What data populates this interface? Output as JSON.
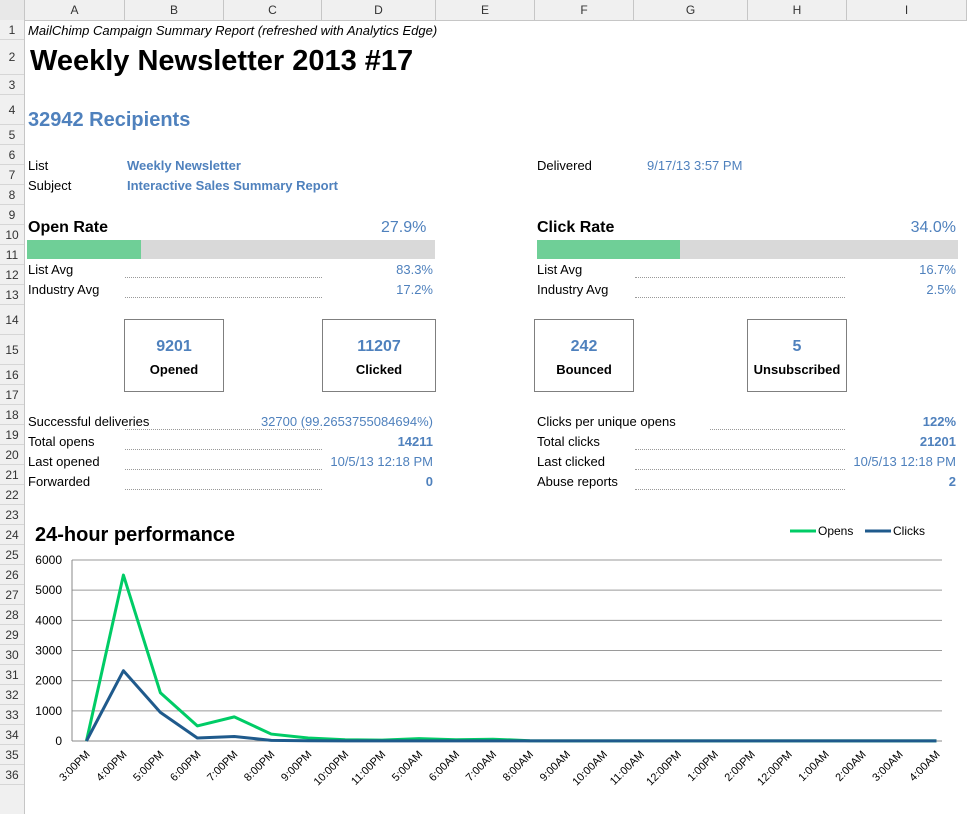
{
  "columns": [
    "A",
    "B",
    "C",
    "D",
    "E",
    "F",
    "G",
    "H",
    "I"
  ],
  "rows": [
    "1",
    "2",
    "3",
    "4",
    "5",
    "6",
    "7",
    "8",
    "9",
    "10",
    "11",
    "12",
    "13",
    "14",
    "15",
    "16",
    "17",
    "18",
    "19",
    "20",
    "21",
    "22",
    "23",
    "24",
    "25",
    "26",
    "27",
    "28",
    "29",
    "30",
    "31",
    "32",
    "33",
    "34",
    "35",
    "36"
  ],
  "report": {
    "subtitle": "MailChimp Campaign Summary Report (refreshed with Analytics Edge)",
    "title": "Weekly Newsletter 2013 #17",
    "recipients": "32942 Recipients",
    "list_label": "List",
    "list_value": "Weekly Newsletter",
    "subject_label": "Subject",
    "subject_value": "Interactive Sales Summary Report",
    "delivered_label": "Delivered",
    "delivered_value": "9/17/13 3:57 PM"
  },
  "open_rate": {
    "label": "Open Rate",
    "value": "27.9%",
    "fraction": 0.279,
    "list_avg_label": "List Avg",
    "list_avg_value": "83.3%",
    "industry_avg_label": "Industry Avg",
    "industry_avg_value": "17.2%"
  },
  "click_rate": {
    "label": "Click Rate",
    "value": "34.0%",
    "fraction": 0.34,
    "list_avg_label": "List Avg",
    "list_avg_value": "16.7%",
    "industry_avg_label": "Industry Avg",
    "industry_avg_value": "2.5%"
  },
  "stat_boxes": [
    {
      "number": "9201",
      "label": "Opened"
    },
    {
      "number": "11207",
      "label": "Clicked"
    },
    {
      "number": "242",
      "label": "Bounced"
    },
    {
      "number": "5",
      "label": "Unsubscribed"
    }
  ],
  "left_stats": [
    {
      "label": "Successful deliveries",
      "value": "32700  (99.2653755084694%)"
    },
    {
      "label": "Total opens",
      "value": "14211"
    },
    {
      "label": "Last opened",
      "value": "10/5/13 12:18 PM"
    },
    {
      "label": "Forwarded",
      "value": "0"
    }
  ],
  "right_stats": [
    {
      "label": "Clicks per unique opens",
      "value": "122%"
    },
    {
      "label": "Total clicks",
      "value": "21201"
    },
    {
      "label": "Last clicked",
      "value": "10/5/13 12:18 PM"
    },
    {
      "label": "Abuse reports",
      "value": "2"
    }
  ],
  "chart_data": {
    "type": "line",
    "title": "24-hour performance",
    "xlabel": "",
    "ylabel": "",
    "ylim": [
      0,
      6000
    ],
    "yticks": [
      "0",
      "1000",
      "2000",
      "3000",
      "4000",
      "5000",
      "6000"
    ],
    "grid": true,
    "legend_position": "top-right",
    "categories": [
      "3:00PM",
      "4:00PM",
      "5:00PM",
      "6:00PM",
      "7:00PM",
      "8:00PM",
      "9:00PM",
      "10:00PM",
      "11:00PM",
      "5:00AM",
      "6:00AM",
      "7:00AM",
      "8:00AM",
      "9:00AM",
      "10:00AM",
      "11:00AM",
      "12:00PM",
      "1:00PM",
      "2:00PM",
      "12:00PM",
      "1:00AM",
      "2:00AM",
      "3:00AM",
      "4:00AM"
    ],
    "series": [
      {
        "name": "Opens",
        "color": "#00cc66",
        "values": [
          0,
          5500,
          1600,
          500,
          800,
          230,
          100,
          40,
          30,
          80,
          40,
          60,
          10,
          5,
          5,
          5,
          5,
          5,
          5,
          5,
          5,
          5,
          5,
          5
        ]
      },
      {
        "name": "Clicks",
        "color": "#1f5a8c",
        "values": [
          0,
          2330,
          950,
          100,
          150,
          20,
          10,
          5,
          5,
          5,
          5,
          5,
          5,
          5,
          5,
          5,
          5,
          5,
          5,
          5,
          5,
          5,
          5,
          5
        ]
      }
    ]
  }
}
